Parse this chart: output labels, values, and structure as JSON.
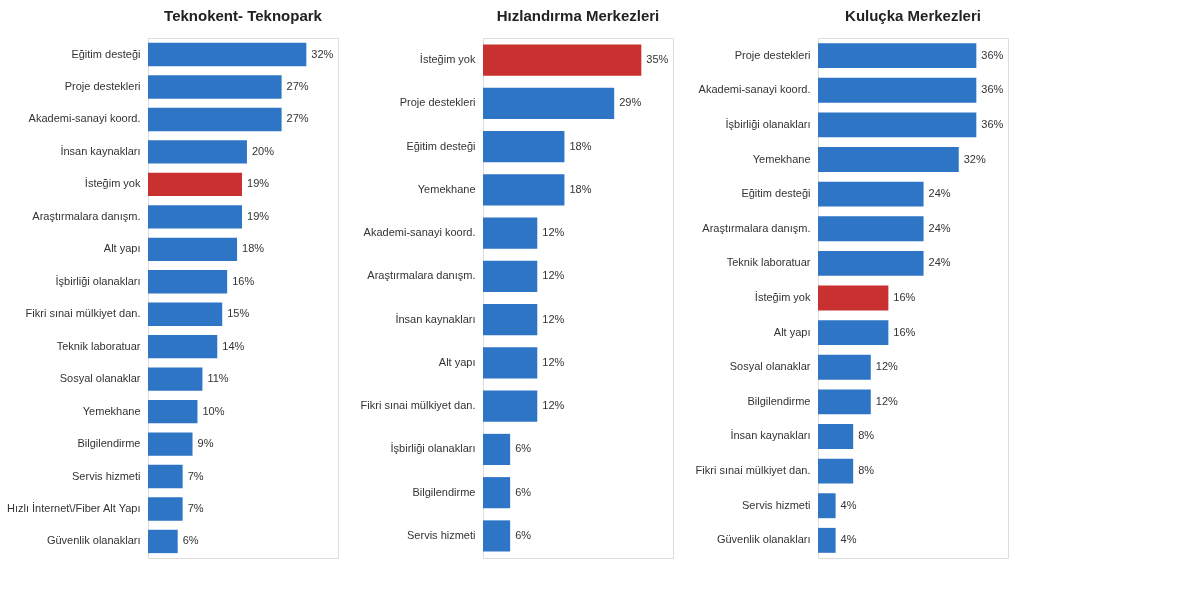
{
  "chart_data": [
    {
      "type": "bar",
      "orientation": "horizontal",
      "title": "Teknokent- Teknopark",
      "categories": [
        "Eğitim desteği",
        "Proje destekleri",
        "Akademi-sanayi koord.",
        "İnsan kaynakları",
        "İsteğim yok",
        "Araştırmalara danışm.",
        "Alt yapı",
        "İşbirliği olanakları",
        "Fikri sınai mülkiyet dan.",
        "Teknik laboratuar",
        "Sosyal olanaklar",
        "Yemekhane",
        "Bilgilendirme",
        "Servis hizmeti",
        "Hızlı İnternet\\/Fiber Alt Yapı",
        "Güvenlik olanakları"
      ],
      "values": [
        32,
        27,
        27,
        20,
        19,
        19,
        18,
        16,
        15,
        14,
        11,
        10,
        9,
        7,
        7,
        6
      ],
      "value_labels": [
        "32%",
        "27%",
        "27%",
        "20%",
        "19%",
        "19%",
        "18%",
        "16%",
        "15%",
        "14%",
        "11%",
        "10%",
        "9%",
        "7%",
        "7%",
        "6%"
      ],
      "colors": [
        "#2e75c6",
        "#2e75c6",
        "#2e75c6",
        "#2e75c6",
        "#c8312f",
        "#2e75c6",
        "#2e75c6",
        "#2e75c6",
        "#2e75c6",
        "#2e75c6",
        "#2e75c6",
        "#2e75c6",
        "#2e75c6",
        "#2e75c6",
        "#2e75c6",
        "#2e75c6"
      ]
    },
    {
      "type": "bar",
      "orientation": "horizontal",
      "title": "Hızlandırma Merkezleri",
      "categories": [
        "İsteğim yok",
        "Proje destekleri",
        "Eğitim desteği",
        "Yemekhane",
        "Akademi-sanayi koord.",
        "Araştırmalara danışm.",
        "İnsan kaynakları",
        "Alt yapı",
        "Fikri sınai mülkiyet dan.",
        "İşbirliği olanakları",
        "Bilgilendirme",
        "Servis hizmeti"
      ],
      "values": [
        35,
        29,
        18,
        18,
        12,
        12,
        12,
        12,
        12,
        6,
        6,
        6
      ],
      "value_labels": [
        "35%",
        "29%",
        "18%",
        "18%",
        "12%",
        "12%",
        "12%",
        "12%",
        "12%",
        "6%",
        "6%",
        "6%"
      ],
      "colors": [
        "#c8312f",
        "#2e75c6",
        "#2e75c6",
        "#2e75c6",
        "#2e75c6",
        "#2e75c6",
        "#2e75c6",
        "#2e75c6",
        "#2e75c6",
        "#2e75c6",
        "#2e75c6",
        "#2e75c6"
      ]
    },
    {
      "type": "bar",
      "orientation": "horizontal",
      "title": "Kuluçka Merkezleri",
      "categories": [
        "Proje destekleri",
        "Akademi-sanayi koord.",
        "İşbirliği olanakları",
        "Yemekhane",
        "Eğitim desteği",
        "Araştırmalara danışm.",
        "Teknik laboratuar",
        "İsteğim yok",
        "Alt yapı",
        "Sosyal olanaklar",
        "Bilgilendirme",
        "İnsan kaynakları",
        "Fikri sınai mülkiyet dan.",
        "Servis hizmeti",
        "Güvenlik olanakları"
      ],
      "values": [
        36,
        36,
        36,
        32,
        24,
        24,
        24,
        16,
        16,
        12,
        12,
        8,
        8,
        4,
        4
      ],
      "value_labels": [
        "36%",
        "36%",
        "36%",
        "32%",
        "24%",
        "24%",
        "24%",
        "16%",
        "16%",
        "12%",
        "12%",
        "8%",
        "8%",
        "4%",
        "4%"
      ],
      "colors": [
        "#2e75c6",
        "#2e75c6",
        "#2e75c6",
        "#2e75c6",
        "#2e75c6",
        "#2e75c6",
        "#2e75c6",
        "#c8312f",
        "#2e75c6",
        "#2e75c6",
        "#2e75c6",
        "#2e75c6",
        "#2e75c6",
        "#2e75c6",
        "#2e75c6"
      ]
    }
  ]
}
